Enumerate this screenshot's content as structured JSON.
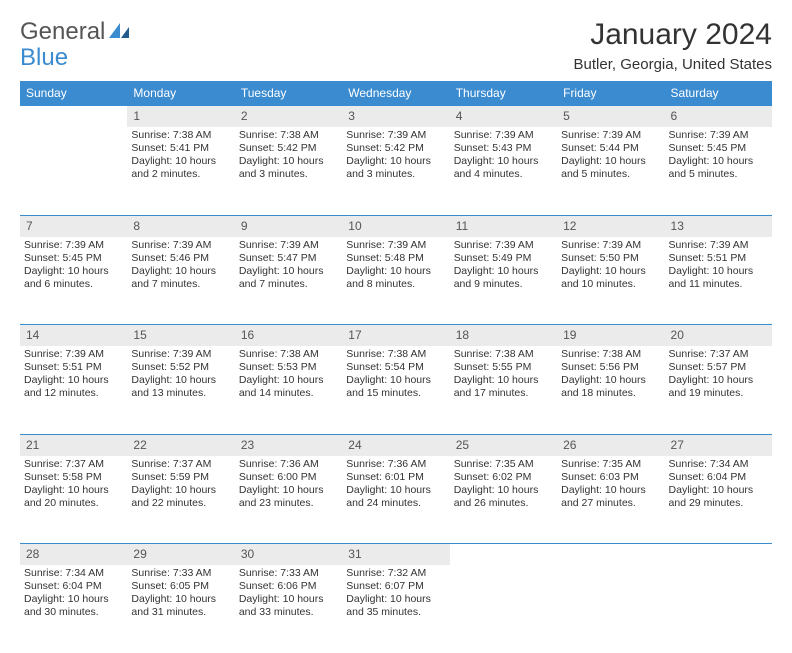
{
  "logo": {
    "text1": "General",
    "text2": "Blue"
  },
  "title": "January 2024",
  "location": "Butler, Georgia, United States",
  "colors": {
    "header_bg": "#3b8bd0",
    "header_text": "#ffffff",
    "daynum_bg": "#ebebeb",
    "row_border": "#3b8bd0",
    "body_text": "#333333",
    "logo_gray": "#555555",
    "logo_blue": "#3b8bd0"
  },
  "days_of_week": [
    "Sunday",
    "Monday",
    "Tuesday",
    "Wednesday",
    "Thursday",
    "Friday",
    "Saturday"
  ],
  "layout": {
    "first_weekday_index": 1,
    "days_in_month": 31,
    "weeks": 5
  },
  "days": {
    "1": {
      "sunrise": "Sunrise: 7:38 AM",
      "sunset": "Sunset: 5:41 PM",
      "daylight1": "Daylight: 10 hours",
      "daylight2": "and 2 minutes."
    },
    "2": {
      "sunrise": "Sunrise: 7:38 AM",
      "sunset": "Sunset: 5:42 PM",
      "daylight1": "Daylight: 10 hours",
      "daylight2": "and 3 minutes."
    },
    "3": {
      "sunrise": "Sunrise: 7:39 AM",
      "sunset": "Sunset: 5:42 PM",
      "daylight1": "Daylight: 10 hours",
      "daylight2": "and 3 minutes."
    },
    "4": {
      "sunrise": "Sunrise: 7:39 AM",
      "sunset": "Sunset: 5:43 PM",
      "daylight1": "Daylight: 10 hours",
      "daylight2": "and 4 minutes."
    },
    "5": {
      "sunrise": "Sunrise: 7:39 AM",
      "sunset": "Sunset: 5:44 PM",
      "daylight1": "Daylight: 10 hours",
      "daylight2": "and 5 minutes."
    },
    "6": {
      "sunrise": "Sunrise: 7:39 AM",
      "sunset": "Sunset: 5:45 PM",
      "daylight1": "Daylight: 10 hours",
      "daylight2": "and 5 minutes."
    },
    "7": {
      "sunrise": "Sunrise: 7:39 AM",
      "sunset": "Sunset: 5:45 PM",
      "daylight1": "Daylight: 10 hours",
      "daylight2": "and 6 minutes."
    },
    "8": {
      "sunrise": "Sunrise: 7:39 AM",
      "sunset": "Sunset: 5:46 PM",
      "daylight1": "Daylight: 10 hours",
      "daylight2": "and 7 minutes."
    },
    "9": {
      "sunrise": "Sunrise: 7:39 AM",
      "sunset": "Sunset: 5:47 PM",
      "daylight1": "Daylight: 10 hours",
      "daylight2": "and 7 minutes."
    },
    "10": {
      "sunrise": "Sunrise: 7:39 AM",
      "sunset": "Sunset: 5:48 PM",
      "daylight1": "Daylight: 10 hours",
      "daylight2": "and 8 minutes."
    },
    "11": {
      "sunrise": "Sunrise: 7:39 AM",
      "sunset": "Sunset: 5:49 PM",
      "daylight1": "Daylight: 10 hours",
      "daylight2": "and 9 minutes."
    },
    "12": {
      "sunrise": "Sunrise: 7:39 AM",
      "sunset": "Sunset: 5:50 PM",
      "daylight1": "Daylight: 10 hours",
      "daylight2": "and 10 minutes."
    },
    "13": {
      "sunrise": "Sunrise: 7:39 AM",
      "sunset": "Sunset: 5:51 PM",
      "daylight1": "Daylight: 10 hours",
      "daylight2": "and 11 minutes."
    },
    "14": {
      "sunrise": "Sunrise: 7:39 AM",
      "sunset": "Sunset: 5:51 PM",
      "daylight1": "Daylight: 10 hours",
      "daylight2": "and 12 minutes."
    },
    "15": {
      "sunrise": "Sunrise: 7:39 AM",
      "sunset": "Sunset: 5:52 PM",
      "daylight1": "Daylight: 10 hours",
      "daylight2": "and 13 minutes."
    },
    "16": {
      "sunrise": "Sunrise: 7:38 AM",
      "sunset": "Sunset: 5:53 PM",
      "daylight1": "Daylight: 10 hours",
      "daylight2": "and 14 minutes."
    },
    "17": {
      "sunrise": "Sunrise: 7:38 AM",
      "sunset": "Sunset: 5:54 PM",
      "daylight1": "Daylight: 10 hours",
      "daylight2": "and 15 minutes."
    },
    "18": {
      "sunrise": "Sunrise: 7:38 AM",
      "sunset": "Sunset: 5:55 PM",
      "daylight1": "Daylight: 10 hours",
      "daylight2": "and 17 minutes."
    },
    "19": {
      "sunrise": "Sunrise: 7:38 AM",
      "sunset": "Sunset: 5:56 PM",
      "daylight1": "Daylight: 10 hours",
      "daylight2": "and 18 minutes."
    },
    "20": {
      "sunrise": "Sunrise: 7:37 AM",
      "sunset": "Sunset: 5:57 PM",
      "daylight1": "Daylight: 10 hours",
      "daylight2": "and 19 minutes."
    },
    "21": {
      "sunrise": "Sunrise: 7:37 AM",
      "sunset": "Sunset: 5:58 PM",
      "daylight1": "Daylight: 10 hours",
      "daylight2": "and 20 minutes."
    },
    "22": {
      "sunrise": "Sunrise: 7:37 AM",
      "sunset": "Sunset: 5:59 PM",
      "daylight1": "Daylight: 10 hours",
      "daylight2": "and 22 minutes."
    },
    "23": {
      "sunrise": "Sunrise: 7:36 AM",
      "sunset": "Sunset: 6:00 PM",
      "daylight1": "Daylight: 10 hours",
      "daylight2": "and 23 minutes."
    },
    "24": {
      "sunrise": "Sunrise: 7:36 AM",
      "sunset": "Sunset: 6:01 PM",
      "daylight1": "Daylight: 10 hours",
      "daylight2": "and 24 minutes."
    },
    "25": {
      "sunrise": "Sunrise: 7:35 AM",
      "sunset": "Sunset: 6:02 PM",
      "daylight1": "Daylight: 10 hours",
      "daylight2": "and 26 minutes."
    },
    "26": {
      "sunrise": "Sunrise: 7:35 AM",
      "sunset": "Sunset: 6:03 PM",
      "daylight1": "Daylight: 10 hours",
      "daylight2": "and 27 minutes."
    },
    "27": {
      "sunrise": "Sunrise: 7:34 AM",
      "sunset": "Sunset: 6:04 PM",
      "daylight1": "Daylight: 10 hours",
      "daylight2": "and 29 minutes."
    },
    "28": {
      "sunrise": "Sunrise: 7:34 AM",
      "sunset": "Sunset: 6:04 PM",
      "daylight1": "Daylight: 10 hours",
      "daylight2": "and 30 minutes."
    },
    "29": {
      "sunrise": "Sunrise: 7:33 AM",
      "sunset": "Sunset: 6:05 PM",
      "daylight1": "Daylight: 10 hours",
      "daylight2": "and 31 minutes."
    },
    "30": {
      "sunrise": "Sunrise: 7:33 AM",
      "sunset": "Sunset: 6:06 PM",
      "daylight1": "Daylight: 10 hours",
      "daylight2": "and 33 minutes."
    },
    "31": {
      "sunrise": "Sunrise: 7:32 AM",
      "sunset": "Sunset: 6:07 PM",
      "daylight1": "Daylight: 10 hours",
      "daylight2": "and 35 minutes."
    }
  }
}
